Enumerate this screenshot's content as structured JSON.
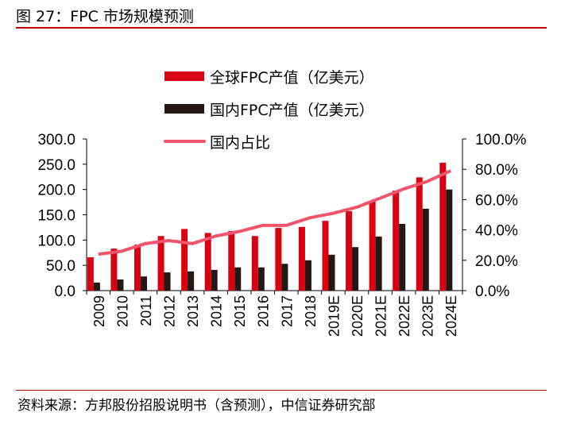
{
  "header": {
    "title": "图 27：FPC 市场规模预测"
  },
  "footer": {
    "source": "资料来源：方邦股份招股说明书（含预测），中信证券研究部"
  },
  "chart_data": {
    "type": "bar",
    "title": "",
    "categories": [
      "2009",
      "2010",
      "2011",
      "2012",
      "2013",
      "2014",
      "2015",
      "2016",
      "2017",
      "2018",
      "2019E",
      "2020E",
      "2021E",
      "2022E",
      "2023E",
      "2024E"
    ],
    "series": [
      {
        "name": "全球FPC产值（亿美元）",
        "type": "bar",
        "axis": "left",
        "color": "#d9000f",
        "values": [
          66,
          83,
          91,
          108,
          122,
          114,
          118,
          108,
          124,
          126,
          138,
          157,
          176,
          198,
          224,
          253
        ]
      },
      {
        "name": "国内FPC产值（亿美元）",
        "type": "bar",
        "axis": "left",
        "color": "#231815",
        "values": [
          16,
          22,
          28,
          36,
          38,
          41,
          46,
          46,
          53,
          60,
          71,
          86,
          107,
          132,
          162,
          200
        ]
      },
      {
        "name": "国内占比",
        "type": "line",
        "axis": "right",
        "color": "#f2556b",
        "values": [
          0.24,
          0.26,
          0.31,
          0.33,
          0.31,
          0.36,
          0.39,
          0.43,
          0.43,
          0.48,
          0.51,
          0.55,
          0.61,
          0.67,
          0.72,
          0.79
        ]
      }
    ],
    "left_axis": {
      "range": [
        0,
        300
      ],
      "ticks": [
        "0.0",
        "50.0",
        "100.0",
        "150.0",
        "200.0",
        "250.0",
        "300.0"
      ]
    },
    "right_axis": {
      "range": [
        0,
        1
      ],
      "ticks": [
        "0.0%",
        "20.0%",
        "40.0%",
        "60.0%",
        "80.0%",
        "100.0%"
      ]
    },
    "grid": false,
    "legend": "top"
  }
}
